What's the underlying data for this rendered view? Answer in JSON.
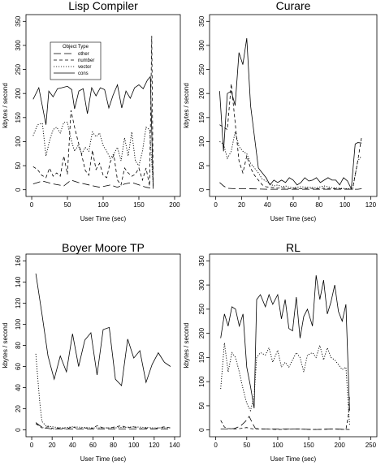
{
  "chart_data": [
    {
      "type": "line",
      "title": "Lisp Compiler",
      "xlabel": "User Time (sec)",
      "ylabel": "kbytes / second",
      "xlim": [
        0,
        200
      ],
      "ylim": [
        0,
        350
      ],
      "xticks": [
        0,
        50,
        100,
        150,
        200
      ],
      "yticks": [
        0,
        50,
        100,
        150,
        200,
        250,
        300,
        350
      ],
      "grid": false,
      "legend": {
        "title": "Object Type",
        "position": "top-left",
        "entries": [
          {
            "label": "other",
            "style": "longdash"
          },
          {
            "label": "number",
            "style": "dash"
          },
          {
            "label": "vector",
            "style": "dotted"
          },
          {
            "label": "cons",
            "style": "solid"
          }
        ]
      },
      "series": [
        {
          "name": "cons",
          "style": "solid",
          "x": [
            2,
            10,
            20,
            24,
            30,
            36,
            42,
            50,
            56,
            60,
            66,
            72,
            78,
            84,
            90,
            96,
            102,
            108,
            114,
            120,
            126,
            132,
            138,
            144,
            150,
            156,
            162,
            166,
            170
          ],
          "y": [
            188,
            212,
            135,
            205,
            193,
            210,
            212,
            215,
            208,
            168,
            205,
            210,
            158,
            212,
            195,
            212,
            208,
            170,
            197,
            218,
            170,
            205,
            190,
            212,
            218,
            210,
            228,
            235,
            2
          ]
        },
        {
          "name": "vector",
          "style": "dotted",
          "x": [
            2,
            8,
            15,
            20,
            25,
            30,
            35,
            40,
            45,
            50,
            55,
            60,
            65,
            70,
            75,
            80,
            85,
            90,
            95,
            100,
            105,
            110,
            115,
            120,
            125,
            130,
            135,
            140,
            145,
            150,
            155,
            160,
            165,
            170
          ],
          "y": [
            112,
            135,
            138,
            70,
            102,
            125,
            130,
            118,
            140,
            140,
            105,
            80,
            92,
            75,
            88,
            80,
            120,
            110,
            118,
            92,
            80,
            65,
            75,
            88,
            60,
            108,
            70,
            120,
            60,
            50,
            80,
            130,
            125,
            10
          ]
        },
        {
          "name": "number",
          "style": "dash",
          "x": [
            2,
            8,
            14,
            20,
            25,
            30,
            35,
            40,
            45,
            50,
            55,
            60,
            65,
            70,
            75,
            80,
            85,
            90,
            95,
            100,
            105,
            110,
            115,
            120,
            125,
            130,
            135,
            140,
            145,
            150,
            155,
            160,
            165,
            168,
            170
          ],
          "y": [
            48,
            42,
            30,
            25,
            45,
            28,
            35,
            28,
            70,
            32,
            165,
            130,
            100,
            72,
            40,
            30,
            82,
            42,
            55,
            30,
            25,
            58,
            72,
            20,
            10,
            45,
            35,
            28,
            32,
            45,
            20,
            45,
            8,
            320,
            5
          ]
        },
        {
          "name": "other",
          "style": "longdash",
          "x": [
            2,
            15,
            30,
            45,
            55,
            65,
            80,
            95,
            110,
            120,
            130,
            140,
            150,
            160,
            168,
            170
          ],
          "y": [
            12,
            18,
            12,
            8,
            20,
            15,
            10,
            5,
            10,
            5,
            12,
            15,
            10,
            5,
            3,
            2
          ]
        }
      ]
    },
    {
      "type": "line",
      "title": "Curare",
      "xlabel": "User Time (sec)",
      "ylabel": "kbytes / second",
      "xlim": [
        0,
        120
      ],
      "ylim": [
        0,
        350
      ],
      "xticks": [
        0,
        20,
        40,
        60,
        80,
        100,
        120
      ],
      "yticks": [
        0,
        50,
        100,
        150,
        200,
        250,
        300,
        350
      ],
      "grid": false,
      "series": [
        {
          "name": "cons",
          "style": "solid",
          "x": [
            3,
            6,
            9,
            12,
            15,
            18,
            21,
            24,
            27,
            30,
            33,
            36,
            39,
            42,
            45,
            48,
            51,
            54,
            57,
            60,
            63,
            66,
            69,
            72,
            75,
            78,
            81,
            84,
            87,
            90,
            93,
            96,
            99,
            102,
            105,
            108,
            110,
            113
          ],
          "y": [
            205,
            80,
            200,
            205,
            175,
            285,
            260,
            315,
            175,
            110,
            45,
            35,
            25,
            10,
            20,
            15,
            20,
            15,
            25,
            20,
            10,
            15,
            25,
            18,
            20,
            25,
            15,
            20,
            25,
            20,
            20,
            10,
            25,
            18,
            2,
            95,
            98,
            97
          ]
        },
        {
          "name": "vector",
          "style": "dotted",
          "x": [
            3,
            6,
            9,
            12,
            15,
            18,
            21,
            24,
            27,
            30,
            33,
            36,
            39,
            42,
            45,
            48,
            51,
            54,
            57,
            60,
            66,
            72,
            78,
            84,
            90,
            96,
            102,
            106,
            108,
            110,
            113
          ],
          "y": [
            100,
            95,
            65,
            80,
            120,
            90,
            80,
            75,
            55,
            45,
            35,
            22,
            18,
            12,
            8,
            10,
            6,
            8,
            5,
            4,
            6,
            5,
            4,
            8,
            4,
            3,
            2,
            2,
            30,
            60,
            70
          ]
        },
        {
          "name": "number",
          "style": "dash",
          "x": [
            3,
            6,
            9,
            12,
            15,
            18,
            21,
            24,
            27,
            30,
            33,
            36,
            39,
            42,
            45,
            48,
            51,
            54,
            57,
            60,
            66,
            72,
            78,
            84,
            90,
            96,
            102,
            106,
            110,
            113
          ],
          "y": [
            135,
            130,
            125,
            220,
            140,
            60,
            35,
            70,
            45,
            30,
            20,
            10,
            6,
            5,
            4,
            3,
            4,
            3,
            2,
            3,
            2,
            3,
            2,
            3,
            2,
            2,
            1,
            1,
            60,
            110
          ]
        },
        {
          "name": "other",
          "style": "longdash",
          "x": [
            3,
            6,
            9,
            15,
            25,
            40,
            60,
            80,
            100,
            110,
            113
          ],
          "y": [
            15,
            8,
            3,
            2,
            2,
            1,
            1,
            1,
            1,
            1,
            2
          ]
        }
      ]
    },
    {
      "type": "line",
      "title": "Boyer Moore TP",
      "xlabel": "User Time (sec)",
      "ylabel": "kbytes / second",
      "xlim": [
        0,
        140
      ],
      "ylim": [
        0,
        160
      ],
      "xticks": [
        0,
        20,
        40,
        60,
        80,
        100,
        120,
        140
      ],
      "yticks": [
        0,
        20,
        40,
        60,
        80,
        100,
        120,
        140,
        160
      ],
      "grid": false,
      "series": [
        {
          "name": "cons",
          "style": "solid",
          "x": [
            4,
            10,
            16,
            22,
            28,
            34,
            40,
            46,
            52,
            58,
            64,
            70,
            76,
            82,
            88,
            94,
            100,
            106,
            112,
            118,
            124,
            130,
            136
          ],
          "y": [
            148,
            110,
            70,
            48,
            70,
            55,
            91,
            60,
            85,
            92,
            52,
            95,
            97,
            48,
            42,
            86,
            68,
            75,
            45,
            62,
            73,
            64,
            60
          ]
        },
        {
          "name": "vector",
          "style": "dotted",
          "x": [
            4,
            6,
            8,
            10,
            14,
            20,
            30,
            40,
            60,
            80,
            100,
            120,
            136
          ],
          "y": [
            72,
            48,
            25,
            8,
            4,
            3,
            2,
            3,
            2,
            2,
            3,
            2,
            2
          ]
        },
        {
          "name": "number",
          "style": "dash",
          "x": [
            4,
            10,
            16,
            22,
            28,
            34,
            40,
            46,
            52,
            58,
            64,
            70,
            76,
            82,
            88,
            94,
            100,
            106,
            112,
            118,
            124,
            130,
            136
          ],
          "y": [
            6,
            2,
            3,
            1,
            2,
            1,
            3,
            1,
            2,
            1,
            4,
            2,
            2,
            3,
            4,
            2,
            3,
            1,
            2,
            1,
            2,
            3,
            2
          ]
        },
        {
          "name": "other",
          "style": "longdash",
          "x": [
            4,
            8,
            12,
            20,
            40,
            60,
            80,
            100,
            120,
            136
          ],
          "y": [
            7,
            4,
            2,
            1,
            1,
            1,
            1,
            1,
            1,
            1
          ]
        }
      ]
    },
    {
      "type": "line",
      "title": "RL",
      "xlabel": "User Time (sec)",
      "ylabel": "kbytes / second",
      "xlim": [
        0,
        250
      ],
      "ylim": [
        0,
        350
      ],
      "xticks": [
        0,
        50,
        100,
        150,
        200,
        250
      ],
      "yticks": [
        0,
        50,
        100,
        150,
        200,
        250,
        300,
        350
      ],
      "grid": false,
      "series": [
        {
          "name": "cons",
          "style": "solid",
          "x": [
            8,
            14,
            20,
            26,
            32,
            38,
            44,
            50,
            56,
            62,
            66,
            72,
            80,
            86,
            92,
            100,
            106,
            112,
            118,
            124,
            130,
            136,
            142,
            148,
            156,
            162,
            168,
            174,
            180,
            186,
            192,
            198,
            204,
            210,
            216
          ],
          "y": [
            190,
            240,
            215,
            255,
            250,
            215,
            240,
            130,
            90,
            45,
            270,
            280,
            255,
            280,
            260,
            280,
            230,
            270,
            210,
            205,
            275,
            190,
            235,
            250,
            215,
            320,
            270,
            310,
            240,
            265,
            300,
            245,
            225,
            260,
            40
          ]
        },
        {
          "name": "vector",
          "style": "dotted",
          "x": [
            8,
            14,
            20,
            26,
            32,
            38,
            44,
            50,
            56,
            62,
            66,
            72,
            80,
            86,
            92,
            100,
            106,
            112,
            118,
            124,
            130,
            136,
            142,
            148,
            156,
            162,
            168,
            174,
            180,
            186,
            192,
            198,
            204,
            210,
            216
          ],
          "y": [
            85,
            180,
            120,
            160,
            150,
            120,
            85,
            55,
            40,
            70,
            150,
            160,
            155,
            170,
            140,
            165,
            130,
            140,
            130,
            145,
            160,
            150,
            120,
            155,
            160,
            150,
            175,
            145,
            170,
            150,
            145,
            135,
            125,
            130,
            10
          ]
        },
        {
          "name": "number",
          "style": "dash",
          "x": [
            8,
            14,
            20,
            30,
            40,
            50,
            56,
            62,
            80,
            100,
            130,
            160,
            190,
            210,
            214,
            216
          ],
          "y": [
            20,
            6,
            3,
            2,
            3,
            5,
            3,
            2,
            2,
            1,
            2,
            1,
            2,
            1,
            30,
            70
          ]
        },
        {
          "name": "other",
          "style": "longdash",
          "x": [
            8,
            20,
            30,
            40,
            48,
            54,
            60,
            64,
            80,
            100,
            130,
            160,
            190,
            216
          ],
          "y": [
            2,
            2,
            3,
            8,
            18,
            28,
            12,
            3,
            2,
            2,
            2,
            1,
            2,
            1
          ]
        }
      ]
    }
  ]
}
